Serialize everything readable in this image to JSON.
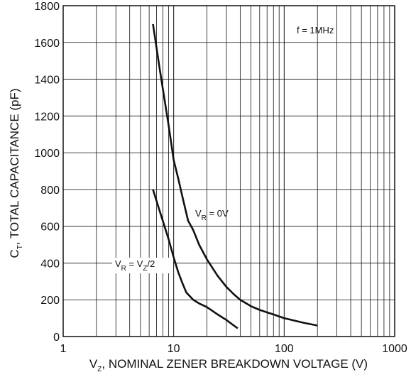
{
  "chart_data": {
    "type": "line",
    "xscale": "log",
    "xlim": [
      1,
      1000
    ],
    "ylim": [
      0,
      1800
    ],
    "grid": true,
    "x_tick_labels": [
      "1",
      "10",
      "100",
      "1000"
    ],
    "y_tick_labels": [
      "0",
      "200",
      "400",
      "600",
      "800",
      "1000",
      "1200",
      "1400",
      "1600",
      "1800"
    ],
    "xlabel": {
      "main": "V",
      "sub": "Z",
      "rest": ", NOMINAL ZENER BREAKDOWN VOLTAGE (V)"
    },
    "ylabel": {
      "main": "C",
      "sub": "T",
      "rest": ", TOTAL CAPACITANCE (pF)"
    },
    "annotation": "f = 1MHz",
    "series": [
      {
        "label_parts": [
          "V",
          "R",
          " = 0V"
        ],
        "x": [
          6.5,
          7.5,
          9,
          10,
          11,
          12,
          13.5,
          15,
          17,
          20,
          25,
          30,
          35,
          40,
          50,
          60,
          80,
          100,
          150,
          200
        ],
        "y": [
          1700,
          1450,
          1150,
          960,
          860,
          760,
          630,
          580,
          500,
          420,
          330,
          270,
          230,
          200,
          165,
          145,
          120,
          100,
          75,
          60
        ]
      },
      {
        "label_parts": [
          "V",
          "R",
          " = V",
          "Z",
          "/2"
        ],
        "x": [
          6.5,
          7.5,
          9,
          10,
          11,
          12,
          13,
          15,
          17,
          20,
          25,
          30,
          35,
          38
        ],
        "y": [
          800,
          680,
          530,
          430,
          350,
          290,
          240,
          200,
          180,
          160,
          120,
          90,
          60,
          45
        ]
      }
    ]
  }
}
